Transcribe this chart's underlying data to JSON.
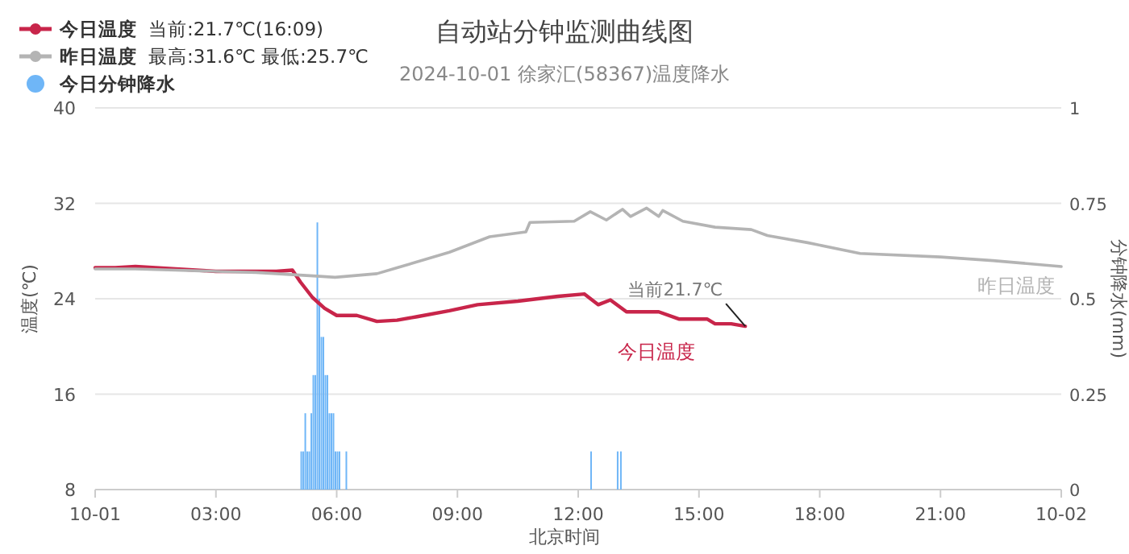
{
  "chart_data": {
    "type": "line",
    "title": "自动站分钟监测曲线图",
    "subtitle": "2024-10-01 徐家汇(58367)温度降水",
    "xlabel": "北京时间",
    "ylabel": "温度(℃)",
    "y2label": "分钟降水(mm)",
    "xlim": [
      0,
      24
    ],
    "xticks": [
      {
        "value": 0,
        "label": "10-01"
      },
      {
        "value": 3,
        "label": "03:00"
      },
      {
        "value": 6,
        "label": "06:00"
      },
      {
        "value": 9,
        "label": "09:00"
      },
      {
        "value": 12,
        "label": "12:00"
      },
      {
        "value": 15,
        "label": "15:00"
      },
      {
        "value": 18,
        "label": "18:00"
      },
      {
        "value": 21,
        "label": "21:00"
      },
      {
        "value": 24,
        "label": "10-02"
      }
    ],
    "ylim": [
      8,
      40
    ],
    "yticks": [
      8,
      16,
      24,
      32,
      40
    ],
    "y2lim": [
      0,
      1
    ],
    "y2ticks": [
      0,
      0.25,
      0.5,
      0.75,
      1
    ],
    "grid": "y",
    "legend": "top left",
    "annotations": [
      "当前:21.7℃(16:09)",
      "最高:31.6℃ 最低:25.7℃",
      {
        "text": "当前21.7℃",
        "x": 16.15,
        "y": 21.7
      }
    ],
    "series": [
      {
        "name": "今日温度",
        "color": "#c8254a",
        "x": [
          0,
          0.5,
          1,
          2,
          3,
          4,
          4.5,
          4.9,
          5.1,
          5.4,
          5.7,
          6,
          6.5,
          7,
          7.5,
          8,
          8.8,
          9.5,
          10.5,
          11.5,
          12.15,
          12.5,
          12.8,
          13.2,
          14,
          14.5,
          15.2,
          15.4,
          15.8,
          16.15
        ],
        "values": [
          26.6,
          26.6,
          26.7,
          26.5,
          26.3,
          26.3,
          26.3,
          26.4,
          25.4,
          24.1,
          23.2,
          22.6,
          22.6,
          22.1,
          22.2,
          22.5,
          23.0,
          23.5,
          23.8,
          24.2,
          24.4,
          23.5,
          23.9,
          22.9,
          22.9,
          22.3,
          22.3,
          21.9,
          21.9,
          21.7
        ]
      },
      {
        "name": "昨日温度",
        "color": "#b4b4b4",
        "x": [
          0,
          1,
          2,
          3,
          4,
          5,
          5.5,
          5.96,
          7,
          7.5,
          8.8,
          9.8,
          10.7,
          10.8,
          11.9,
          12.3,
          12.7,
          13.1,
          13.3,
          13.7,
          14,
          14.1,
          14.6,
          15.4,
          16.3,
          16.7,
          17.7,
          19,
          21,
          22.3,
          24
        ],
        "values": [
          26.5,
          26.5,
          26.4,
          26.3,
          26.2,
          26.0,
          25.9,
          25.8,
          26.1,
          26.6,
          27.9,
          29.2,
          29.6,
          30.4,
          30.5,
          31.3,
          30.6,
          31.5,
          30.9,
          31.6,
          30.9,
          31.4,
          30.5,
          30.0,
          29.8,
          29.3,
          28.7,
          27.8,
          27.5,
          27.2,
          26.7
        ]
      },
      {
        "name": "今日分钟降水",
        "type": "bar",
        "axis": "y2",
        "color": "#6fb6f7",
        "x": [
          5.1,
          5.15,
          5.2,
          5.25,
          5.3,
          5.35,
          5.4,
          5.45,
          5.5,
          5.55,
          5.6,
          5.65,
          5.7,
          5.75,
          5.8,
          5.85,
          5.9,
          5.95,
          6,
          6.05,
          6.22,
          12.3,
          12.96,
          13.04
        ],
        "values": [
          0.1,
          0.1,
          0.2,
          0.1,
          0.1,
          0.2,
          0.3,
          0.3,
          0.7,
          0.5,
          0.4,
          0.4,
          0.3,
          0.3,
          0.2,
          0.2,
          0.2,
          0.1,
          0.1,
          0.1,
          0.1,
          0.1,
          0.1,
          0.1
        ]
      }
    ]
  }
}
